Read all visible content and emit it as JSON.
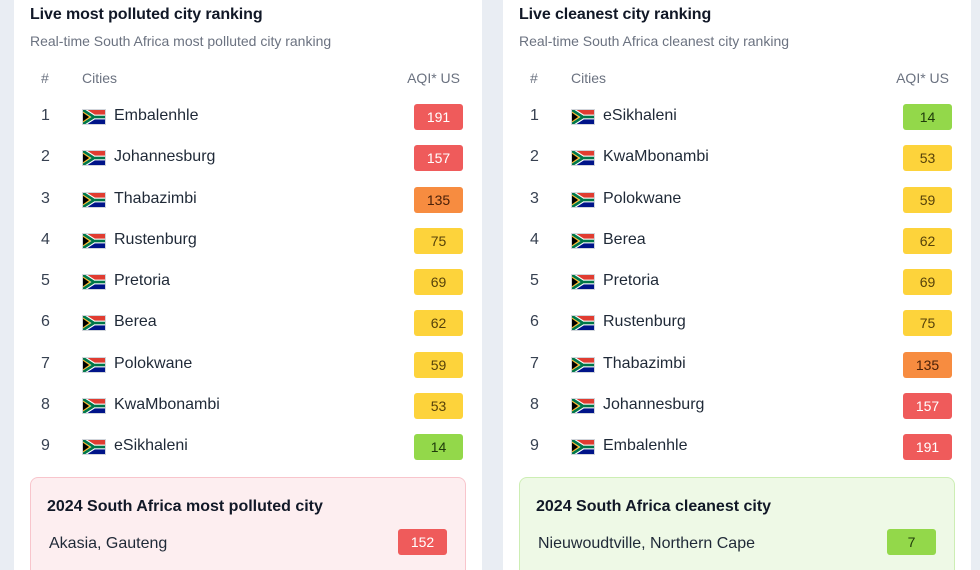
{
  "polluted": {
    "title": "Live most polluted city ranking",
    "subtitle": "Real-time South Africa most polluted city ranking",
    "headers": {
      "rank": "#",
      "city": "Cities",
      "aqi": "AQI* US"
    },
    "rows": [
      {
        "rank": "1",
        "city": "Embalenhle",
        "aqi": "191",
        "level": "red"
      },
      {
        "rank": "2",
        "city": "Johannesburg",
        "aqi": "157",
        "level": "red"
      },
      {
        "rank": "3",
        "city": "Thabazimbi",
        "aqi": "135",
        "level": "orange"
      },
      {
        "rank": "4",
        "city": "Rustenburg",
        "aqi": "75",
        "level": "yellow"
      },
      {
        "rank": "5",
        "city": "Pretoria",
        "aqi": "69",
        "level": "yellow"
      },
      {
        "rank": "6",
        "city": "Berea",
        "aqi": "62",
        "level": "yellow"
      },
      {
        "rank": "7",
        "city": "Polokwane",
        "aqi": "59",
        "level": "yellow"
      },
      {
        "rank": "8",
        "city": "KwaMbonambi",
        "aqi": "53",
        "level": "yellow"
      },
      {
        "rank": "9",
        "city": "eSikhaleni",
        "aqi": "14",
        "level": "green"
      }
    ],
    "summary": {
      "title": "2024 South Africa most polluted city",
      "city": "Akasia, Gauteng",
      "aqi": "152",
      "level": "red"
    }
  },
  "cleanest": {
    "title": "Live cleanest city ranking",
    "subtitle": "Real-time South Africa cleanest city ranking",
    "headers": {
      "rank": "#",
      "city": "Cities",
      "aqi": "AQI* US"
    },
    "rows": [
      {
        "rank": "1",
        "city": "eSikhaleni",
        "aqi": "14",
        "level": "green"
      },
      {
        "rank": "2",
        "city": "KwaMbonambi",
        "aqi": "53",
        "level": "yellow"
      },
      {
        "rank": "3",
        "city": "Polokwane",
        "aqi": "59",
        "level": "yellow"
      },
      {
        "rank": "4",
        "city": "Berea",
        "aqi": "62",
        "level": "yellow"
      },
      {
        "rank": "5",
        "city": "Pretoria",
        "aqi": "69",
        "level": "yellow"
      },
      {
        "rank": "6",
        "city": "Rustenburg",
        "aqi": "75",
        "level": "yellow"
      },
      {
        "rank": "7",
        "city": "Thabazimbi",
        "aqi": "135",
        "level": "orange"
      },
      {
        "rank": "8",
        "city": "Johannesburg",
        "aqi": "157",
        "level": "red"
      },
      {
        "rank": "9",
        "city": "Embalenhle",
        "aqi": "191",
        "level": "red"
      }
    ],
    "summary": {
      "title": "2024 South Africa cleanest city",
      "city": "Nieuwoudtville, Northern Cape",
      "aqi": "7",
      "level": "green"
    }
  },
  "flag_icon": "south-africa-flag-icon",
  "aqi_colors": {
    "red": "#ef5b5b",
    "orange": "#f78c40",
    "yellow": "#fdd33b",
    "green": "#93d84a"
  }
}
